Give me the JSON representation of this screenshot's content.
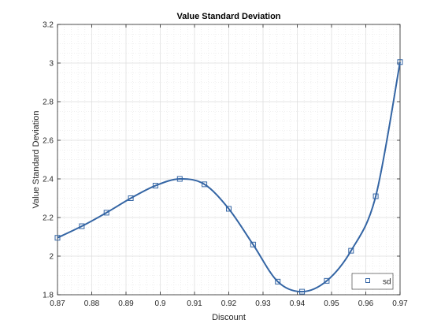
{
  "chart_data": {
    "type": "line",
    "title": "Value Standard Deviation",
    "xlabel": "Discount",
    "ylabel": "Value Standard Deviation",
    "xlim": [
      0.87,
      0.97
    ],
    "ylim": [
      1.8,
      3.2
    ],
    "xticks": [
      "0.87",
      "0.88",
      "0.89",
      "0.9",
      "0.91",
      "0.92",
      "0.93",
      "0.94",
      "0.95",
      "0.96",
      "0.97"
    ],
    "xtick_values": [
      0.87,
      0.88,
      0.89,
      0.9,
      0.91,
      0.92,
      0.93,
      0.94,
      0.95,
      0.96,
      0.97
    ],
    "yticks": [
      "1.8",
      "2",
      "2.2",
      "2.4",
      "2.6",
      "2.8",
      "3",
      "3.2"
    ],
    "ytick_values": [
      1.8,
      2.0,
      2.2,
      2.4,
      2.6,
      2.8,
      3.0,
      3.2
    ],
    "grid": true,
    "minor_grid": true,
    "legend_position": "bottom-right",
    "series": [
      {
        "name": "sd",
        "color": "#3465a4",
        "marker": "square",
        "x": [
          0.87,
          0.8771,
          0.8843,
          0.8914,
          0.8986,
          0.9057,
          0.9129,
          0.92,
          0.9271,
          0.9343,
          0.9414,
          0.9486,
          0.9557,
          0.9629,
          0.97
        ],
        "y": [
          2.095,
          2.155,
          2.225,
          2.3,
          2.365,
          2.4,
          2.372,
          2.245,
          2.06,
          1.868,
          1.816,
          1.872,
          2.028,
          2.31,
          3.005
        ]
      }
    ]
  }
}
